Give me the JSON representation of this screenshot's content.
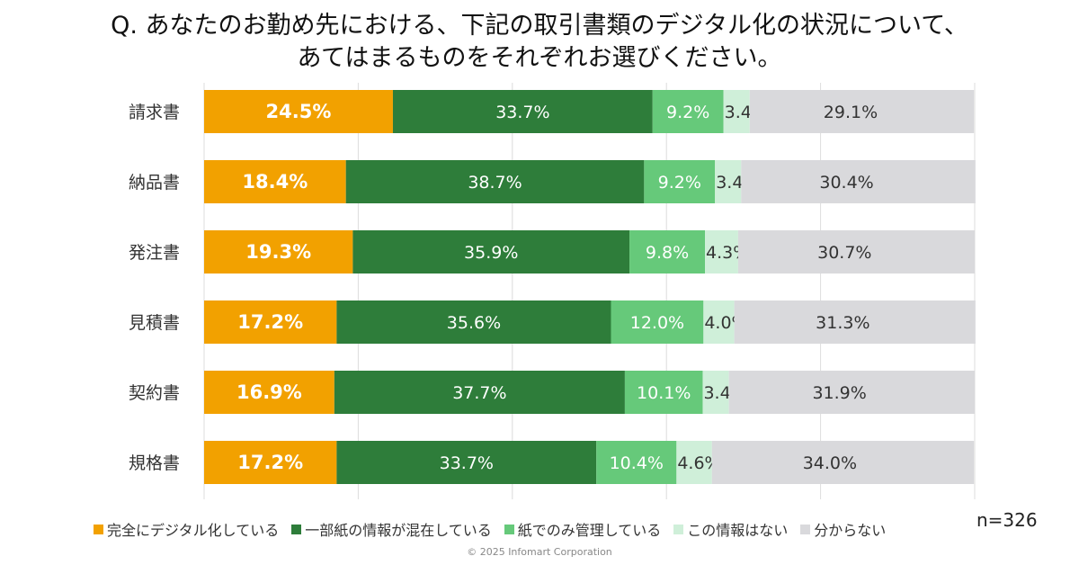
{
  "chart_data": {
    "type": "bar",
    "orientation": "horizontal",
    "stacked": true,
    "title": [
      "Q. あなたのお勤め先における、下記の取引書類のデジタル化の状況について、",
      "あてはまるものをそれぞれお選びください。"
    ],
    "categories": [
      "請求書",
      "納品書",
      "発注書",
      "見積書",
      "契約書",
      "規格書"
    ],
    "series": [
      {
        "name": "完全にデジタル化している",
        "color": "#F2A100",
        "values": [
          24.5,
          18.4,
          19.3,
          17.2,
          16.9,
          17.2
        ]
      },
      {
        "name": "一部紙の情報が混在している",
        "color": "#2E7D3A",
        "values": [
          33.7,
          38.7,
          35.9,
          35.6,
          37.7,
          33.7
        ]
      },
      {
        "name": "紙でのみ管理している",
        "color": "#66C97A",
        "values": [
          9.2,
          9.2,
          9.8,
          12.0,
          10.1,
          10.4
        ]
      },
      {
        "name": "この情報はない",
        "color": "#CFEFD9",
        "values": [
          3.4,
          3.4,
          4.3,
          4.0,
          3.4,
          4.6
        ]
      },
      {
        "name": "分からない",
        "color": "#D9D9DC",
        "values": [
          29.1,
          30.4,
          30.7,
          31.3,
          31.9,
          34.0
        ]
      }
    ],
    "xlim": [
      0,
      100
    ],
    "grid": true,
    "legend": "bottom",
    "unit": "%"
  },
  "note": "n=326",
  "copyright": "© 2025 Infomart Corporation"
}
